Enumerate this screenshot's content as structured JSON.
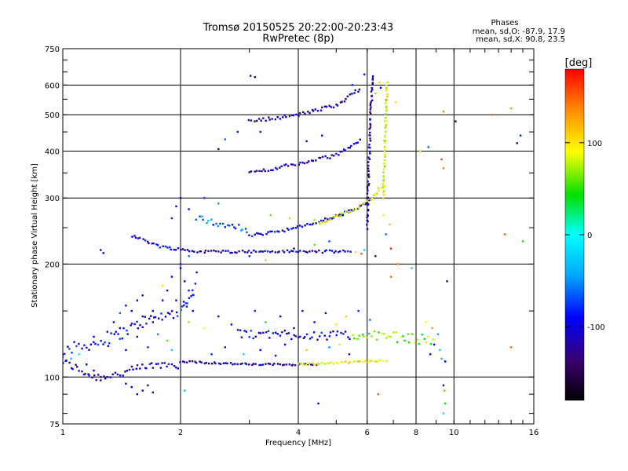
{
  "chart_data": {
    "type": "scatter",
    "title": "Tromsø 20150525 20:22:00-20:23:43",
    "subtitle": "RwPretec (8p)",
    "phase_box": {
      "title": "Phases",
      "line_o": "mean, sd,O: -87.9, 17.9",
      "line_x": "mean, sd,X:  90.8, 23.5"
    },
    "xlabel": "Frequency [MHz]",
    "ylabel": "Stationary phase Virtual Height [km]",
    "x_scale": "log",
    "y_scale": "log",
    "xlim": [
      1,
      16
    ],
    "ylim": [
      75,
      750
    ],
    "x_ticks": [
      1,
      2,
      4,
      6,
      8,
      10,
      16
    ],
    "x_tick_labels": [
      "1",
      "2",
      "4",
      "6",
      "8",
      "10",
      "16"
    ],
    "y_ticks": [
      75,
      100,
      200,
      300,
      400,
      500,
      600,
      750
    ],
    "y_tick_labels": [
      "75",
      "100",
      "200",
      "300",
      "400",
      "500",
      "600",
      "750"
    ],
    "grid": true,
    "colorbar": {
      "label": "[deg]",
      "range": [
        -180,
        180
      ],
      "ticks": [
        100,
        0,
        -100
      ],
      "tick_labels": [
        "100",
        "0",
        "-100"
      ]
    },
    "traces": [
      {
        "points": [
          [
            1.0,
            110
          ],
          [
            1.2,
            100
          ],
          [
            1.4,
            102
          ],
          [
            1.6,
            106
          ],
          [
            1.8,
            108
          ],
          [
            2.0,
            108
          ]
        ],
        "phase": -110,
        "jitter": 0.025
      },
      {
        "points": [
          [
            1.0,
            118
          ],
          [
            1.3,
            125
          ],
          [
            1.6,
            140
          ],
          [
            2.0,
            150
          ],
          [
            2.2,
            175
          ]
        ],
        "phase": -95,
        "jitter": 0.035
      },
      {
        "points": [
          [
            2.0,
            110
          ],
          [
            3.0,
            108
          ],
          [
            4.0,
            108
          ],
          [
            4.5,
            108
          ]
        ],
        "phase": -110,
        "jitter": 0.006
      },
      {
        "points": [
          [
            4.0,
            108
          ],
          [
            5.0,
            109
          ],
          [
            6.0,
            110
          ],
          [
            6.8,
            111
          ]
        ],
        "phase": 90,
        "jitter": 0.006
      },
      {
        "points": [
          [
            1.5,
            238
          ],
          [
            1.8,
            222
          ],
          [
            2.2,
            216
          ],
          [
            3.0,
            216
          ],
          [
            5.5,
            216
          ]
        ],
        "phase": -105,
        "jitter": 0.008
      },
      {
        "points": [
          [
            3.0,
            238
          ],
          [
            4.0,
            250
          ],
          [
            5.0,
            268
          ],
          [
            5.8,
            285
          ],
          [
            6.2,
            298
          ]
        ],
        "phase": -100,
        "jitter": 0.01
      },
      {
        "points": [
          [
            4.5,
            255
          ],
          [
            5.5,
            278
          ],
          [
            6.2,
            300
          ],
          [
            6.6,
            330
          ]
        ],
        "phase": 90,
        "jitter": 0.01
      },
      {
        "points": [
          [
            6.0,
            250
          ],
          [
            6.05,
            350
          ],
          [
            6.1,
            450
          ],
          [
            6.15,
            550
          ],
          [
            6.2,
            640
          ]
        ],
        "phase": -120,
        "jitter": 0.01
      },
      {
        "points": [
          [
            6.6,
            300
          ],
          [
            6.65,
            400
          ],
          [
            6.7,
            500
          ],
          [
            6.75,
            620
          ]
        ],
        "phase": 85,
        "jitter": 0.01
      },
      {
        "points": [
          [
            3.0,
            480
          ],
          [
            4.0,
            500
          ],
          [
            5.0,
            530
          ],
          [
            5.8,
            590
          ]
        ],
        "phase": -115,
        "jitter": 0.01
      },
      {
        "points": [
          [
            3.0,
            350
          ],
          [
            4.0,
            370
          ],
          [
            5.0,
            390
          ],
          [
            5.8,
            430
          ]
        ],
        "phase": -110,
        "jitter": 0.01
      },
      {
        "points": [
          [
            2.2,
            265
          ],
          [
            2.6,
            255
          ],
          [
            3.0,
            245
          ]
        ],
        "phase": -60,
        "jitter": 0.02
      },
      {
        "points": [
          [
            2.8,
            130
          ],
          [
            4.0,
            130
          ],
          [
            5.5,
            128
          ]
        ],
        "phase": -100,
        "jitter": 0.03
      },
      {
        "points": [
          [
            5.5,
            130
          ],
          [
            7.0,
            128
          ],
          [
            9.0,
            125
          ]
        ],
        "phase": 60,
        "jitter": 0.03
      }
    ],
    "scatter": [
      [
        3.02,
        635,
        -120
      ],
      [
        3.1,
        630,
        -110
      ],
      [
        5.9,
        640,
        -90
      ],
      [
        6.2,
        620,
        -100
      ],
      [
        6.45,
        610,
        110
      ],
      [
        5.5,
        600,
        -80
      ],
      [
        6.3,
        570,
        70
      ],
      [
        7.1,
        540,
        100
      ],
      [
        9.4,
        510,
        140
      ],
      [
        10.1,
        480,
        -150
      ],
      [
        14.8,
        440,
        -80
      ],
      [
        14.5,
        420,
        -130
      ],
      [
        12.5,
        500,
        150
      ],
      [
        14.0,
        520,
        60
      ],
      [
        6.5,
        590,
        -100
      ],
      [
        8.6,
        410,
        -60
      ],
      [
        8.2,
        400,
        80
      ],
      [
        9.3,
        380,
        160
      ],
      [
        9.4,
        360,
        140
      ],
      [
        2.8,
        450,
        -100
      ],
      [
        2.6,
        430,
        -60
      ],
      [
        2.5,
        405,
        -100
      ],
      [
        3.2,
        450,
        -80
      ],
      [
        4.2,
        425,
        -120
      ],
      [
        4.6,
        440,
        -90
      ],
      [
        2.0,
        300,
        -100
      ],
      [
        1.95,
        285,
        -110
      ],
      [
        2.1,
        280,
        -100
      ],
      [
        1.9,
        265,
        -80
      ],
      [
        2.5,
        290,
        -50
      ],
      [
        2.3,
        300,
        -70
      ],
      [
        3.4,
        270,
        60
      ],
      [
        3.8,
        265,
        110
      ],
      [
        4.4,
        262,
        70
      ],
      [
        5.2,
        270,
        -90
      ],
      [
        2.0,
        195,
        -100
      ],
      [
        2.05,
        180,
        -110
      ],
      [
        2.1,
        170,
        -90
      ],
      [
        1.95,
        160,
        -100
      ],
      [
        2.15,
        150,
        -100
      ],
      [
        1.8,
        175,
        100
      ],
      [
        2.2,
        190,
        -120
      ],
      [
        1.9,
        185,
        -90
      ],
      [
        2.0,
        200,
        -80
      ],
      [
        2.1,
        210,
        -60
      ],
      [
        1.5,
        150,
        -100
      ],
      [
        1.6,
        145,
        -110
      ],
      [
        1.7,
        140,
        -95
      ],
      [
        1.4,
        135,
        -100
      ],
      [
        1.55,
        128,
        -90
      ],
      [
        1.65,
        120,
        -80
      ],
      [
        1.45,
        118,
        -100
      ],
      [
        1.75,
        130,
        -50
      ],
      [
        1.85,
        125,
        60
      ],
      [
        1.9,
        118,
        -20
      ],
      [
        1.1,
        115,
        -10
      ],
      [
        1.05,
        112,
        -30
      ],
      [
        1.15,
        108,
        -90
      ],
      [
        1.2,
        104,
        -100
      ],
      [
        1.0,
        113,
        -40
      ],
      [
        1.25,
        98,
        -120
      ],
      [
        1.3,
        100,
        -110
      ],
      [
        1.45,
        96,
        -100
      ],
      [
        1.5,
        94,
        -90
      ],
      [
        1.6,
        92,
        -100
      ],
      [
        1.55,
        90,
        -110
      ],
      [
        1.65,
        95,
        -120
      ],
      [
        1.7,
        91,
        -100
      ],
      [
        2.05,
        92,
        -30
      ],
      [
        4.5,
        85,
        -110
      ],
      [
        1.25,
        218,
        -110
      ],
      [
        1.27,
        214,
        -100
      ],
      [
        5.6,
        215,
        100
      ],
      [
        5.8,
        213,
        150
      ],
      [
        5.9,
        218,
        -20
      ],
      [
        6.3,
        210,
        -150
      ],
      [
        7.2,
        200,
        140
      ],
      [
        7.8,
        195,
        -30
      ],
      [
        6.9,
        185,
        150
      ],
      [
        9.6,
        180,
        -120
      ],
      [
        8.5,
        140,
        90
      ],
      [
        8.8,
        135,
        130
      ],
      [
        9.1,
        130,
        -40
      ],
      [
        8.9,
        122,
        -90
      ],
      [
        9.2,
        118,
        20
      ],
      [
        9.3,
        112,
        30
      ],
      [
        9.5,
        110,
        -100
      ],
      [
        8.7,
        115,
        -90
      ],
      [
        9.4,
        95,
        -130
      ],
      [
        9.45,
        92,
        60
      ],
      [
        9.5,
        85,
        40
      ],
      [
        9.4,
        80,
        -20
      ],
      [
        14.0,
        120,
        150
      ],
      [
        15.0,
        230,
        50
      ],
      [
        13.5,
        240,
        150
      ],
      [
        6.4,
        90,
        150
      ],
      [
        6.9,
        220,
        170
      ],
      [
        6.7,
        240,
        -60
      ],
      [
        6.85,
        255,
        110
      ],
      [
        6.6,
        270,
        95
      ],
      [
        3.9,
        220,
        -120
      ],
      [
        4.4,
        225,
        60
      ],
      [
        4.8,
        230,
        -70
      ],
      [
        3.3,
        205,
        110
      ],
      [
        3.0,
        210,
        -80
      ],
      [
        2.4,
        115,
        -80
      ],
      [
        2.6,
        120,
        -100
      ],
      [
        2.9,
        115,
        -20
      ],
      [
        3.2,
        118,
        -90
      ],
      [
        3.5,
        114,
        -110
      ],
      [
        3.7,
        122,
        -100
      ],
      [
        4.2,
        118,
        110
      ],
      [
        4.8,
        120,
        -50
      ],
      [
        5.1,
        122,
        80
      ],
      [
        5.4,
        115,
        -100
      ],
      [
        2.5,
        145,
        -100
      ],
      [
        3.1,
        150,
        -80
      ],
      [
        3.6,
        145,
        -110
      ],
      [
        4.1,
        150,
        -120
      ],
      [
        4.7,
        148,
        -100
      ],
      [
        5.3,
        145,
        110
      ],
      [
        5.7,
        150,
        -80
      ],
      [
        6.1,
        142,
        -60
      ],
      [
        2.1,
        140,
        70
      ],
      [
        2.3,
        135,
        90
      ],
      [
        2.7,
        138,
        -90
      ],
      [
        3.3,
        140,
        30
      ],
      [
        3.9,
        135,
        -100
      ],
      [
        4.4,
        140,
        -90
      ],
      [
        5.0,
        138,
        100
      ],
      [
        1.2,
        128,
        -100
      ],
      [
        1.3,
        132,
        -110
      ],
      [
        1.35,
        140,
        -90
      ],
      [
        1.45,
        155,
        -100
      ],
      [
        1.55,
        160,
        -95
      ],
      [
        1.6,
        165,
        -110
      ],
      [
        1.4,
        148,
        -60
      ],
      [
        1.7,
        150,
        -100
      ],
      [
        1.8,
        160,
        -100
      ],
      [
        1.85,
        170,
        -90
      ]
    ]
  }
}
